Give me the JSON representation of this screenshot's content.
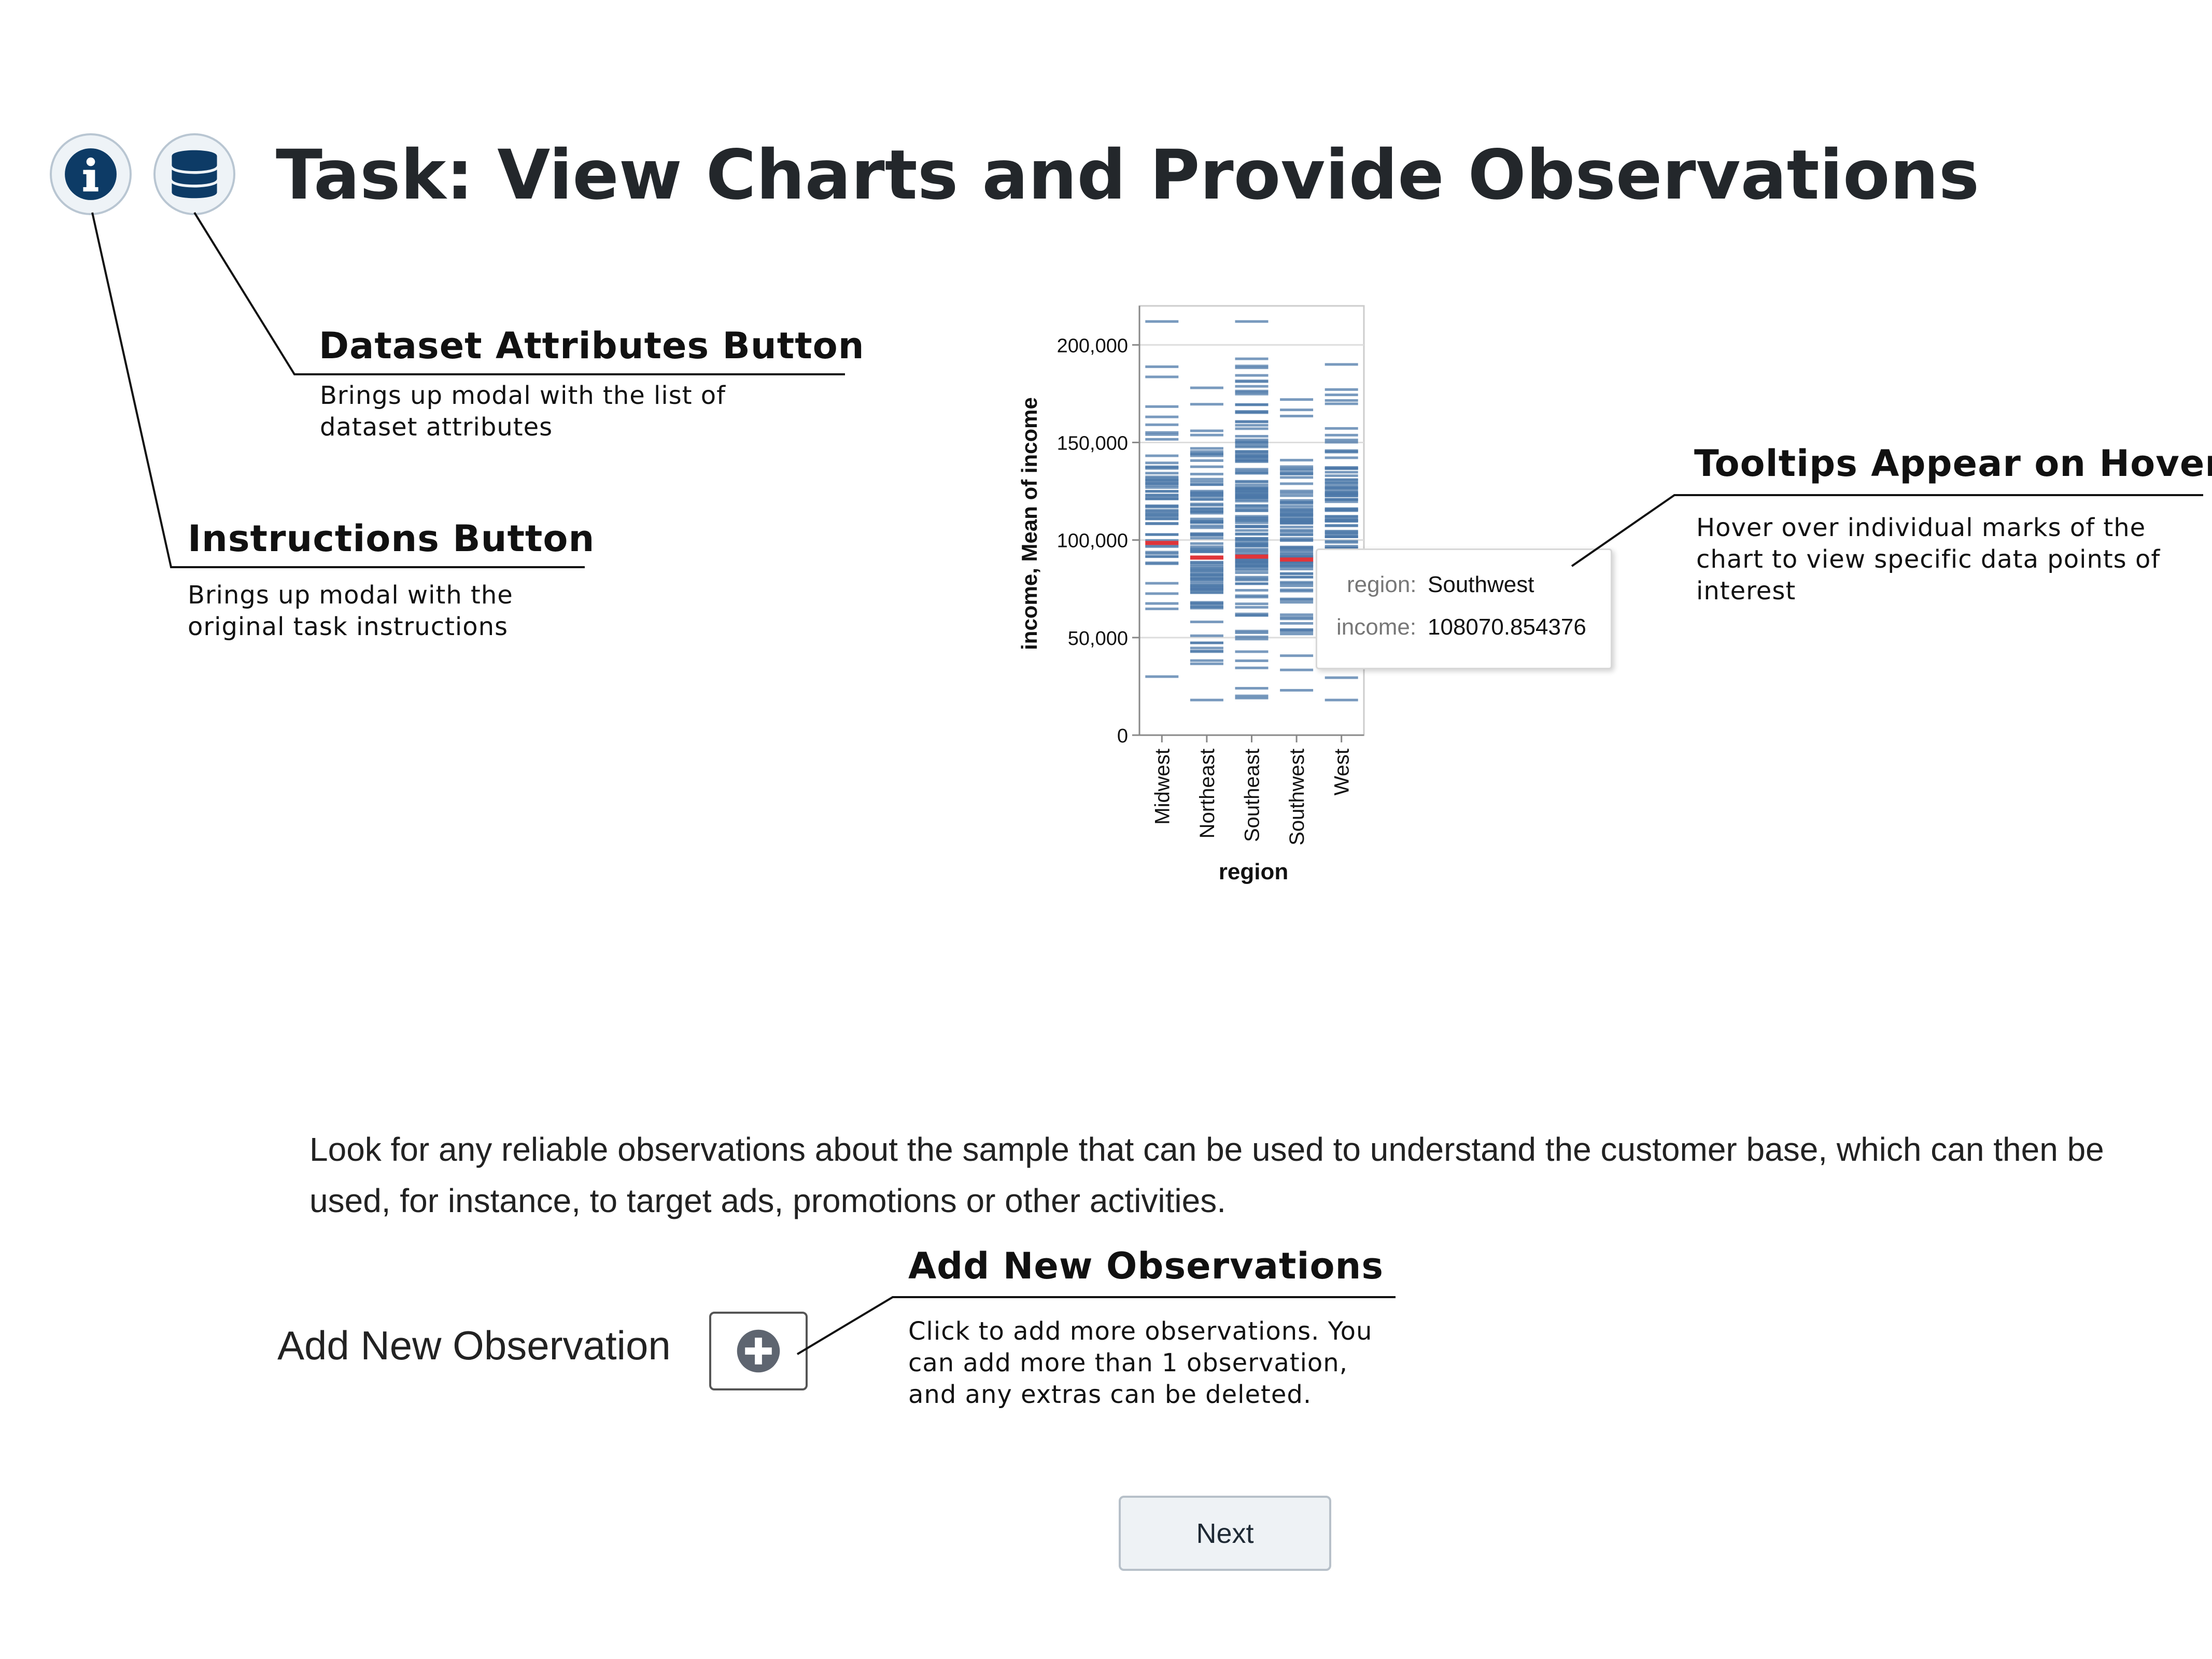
{
  "header": {
    "title": "Task: View Charts and Provide Observations",
    "info_icon": "info-circle-icon",
    "database_icon": "database-icon"
  },
  "annotations": {
    "dataset_attributes": {
      "title": "Dataset Attributes Button",
      "desc_lines": [
        "Brings up modal with the list of",
        "dataset attributes"
      ]
    },
    "instructions": {
      "title": "Instructions Button",
      "desc_lines": [
        "Brings up modal with the",
        "original task instructions"
      ]
    },
    "tooltips": {
      "title": "Tooltips Appear on Hover",
      "desc_lines": [
        "Hover over individual marks of the",
        "chart to view specific data points of",
        "interest"
      ]
    },
    "add_observations": {
      "title": "Add New Observations",
      "desc_lines": [
        "Click to add more observations. You",
        "can add more than 1 observation,",
        "and any extras can be deleted."
      ]
    }
  },
  "chart_data": {
    "type": "strip",
    "title": "",
    "xlabel": "region",
    "ylabel": "income, Mean of income",
    "categories": [
      "Midwest",
      "Northeast",
      "Southeast",
      "Southwest",
      "West"
    ],
    "ylim": [
      0,
      220000
    ],
    "yticks": [
      0,
      50000,
      100000,
      150000,
      200000
    ],
    "ytick_labels": [
      "0",
      "50,000",
      "100,000",
      "150,000",
      "200,000"
    ],
    "mean_values": [
      98500,
      91000,
      91500,
      90000,
      null
    ],
    "series_ranges": [
      {
        "category": "Midwest",
        "min": 30000,
        "max": 212000
      },
      {
        "category": "Northeast",
        "min": 18000,
        "max": 178000
      },
      {
        "category": "Southeast",
        "min": 19000,
        "max": 212000
      },
      {
        "category": "Southwest",
        "min": 23000,
        "max": 172000
      },
      {
        "category": "West",
        "min": 18000,
        "max": 190000
      }
    ],
    "mark_color": "#4c78a8",
    "mean_color": "#e0353a",
    "tooltip": {
      "region_key": "region:",
      "region_value": "Southwest",
      "income_key": "income:",
      "income_value": "108070.854376"
    }
  },
  "prompt": {
    "text": "Look for any reliable observations about the sample that can be used to understand the customer base, which can then be used, for instance, to target ads, promotions or other activities."
  },
  "observation": {
    "add_label": "Add New Observation",
    "add_icon": "plus-circle-icon"
  },
  "footer": {
    "next_label": "Next"
  },
  "colors": {
    "icon_navy": "#0d3b66",
    "accent_blue": "#4c78a8",
    "mean_red": "#e0353a"
  }
}
